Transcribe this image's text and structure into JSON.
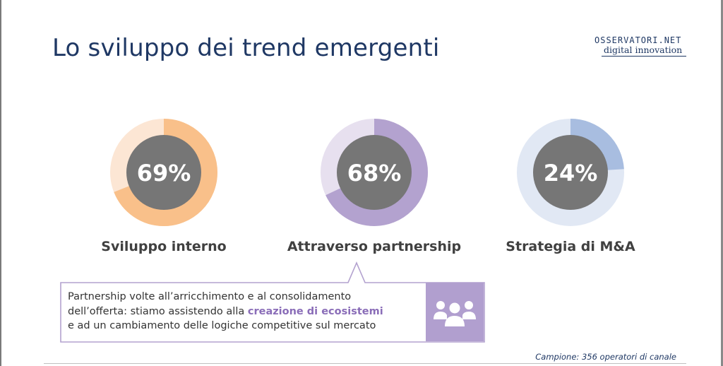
{
  "title": "Lo sviluppo dei trend emergenti",
  "logo": {
    "top_text": "OSSERVATORI.NET",
    "bottom_text": "digital innovation"
  },
  "chart_data": {
    "type": "pie",
    "variant": "donut",
    "charts": [
      {
        "label": "Sviluppo interno",
        "value": 69,
        "display": "69%",
        "color": "#f9c08a",
        "track_color": "#fce6d4"
      },
      {
        "label": "Attraverso partnership",
        "value": 68,
        "display": "68%",
        "color": "#b3a2cf",
        "track_color": "#e7e0ef"
      },
      {
        "label": "Strategia di M&A",
        "value": 24,
        "display": "24%",
        "color": "#a8bde0",
        "track_color": "#e1e8f4"
      }
    ],
    "center_color": "#767676"
  },
  "callout": {
    "line1": "Partnership volte all’arricchimento e al consolidamento",
    "line2_prefix": "dell’offerta: stiamo assistendo alla ",
    "line2_highlight": "creazione di ecosistemi",
    "line3": "e ad un cambiamento delle logiche competitive sul mercato",
    "icon": "people-group-icon"
  },
  "footer": {
    "note": "Campione: 356 operatori di canale"
  }
}
